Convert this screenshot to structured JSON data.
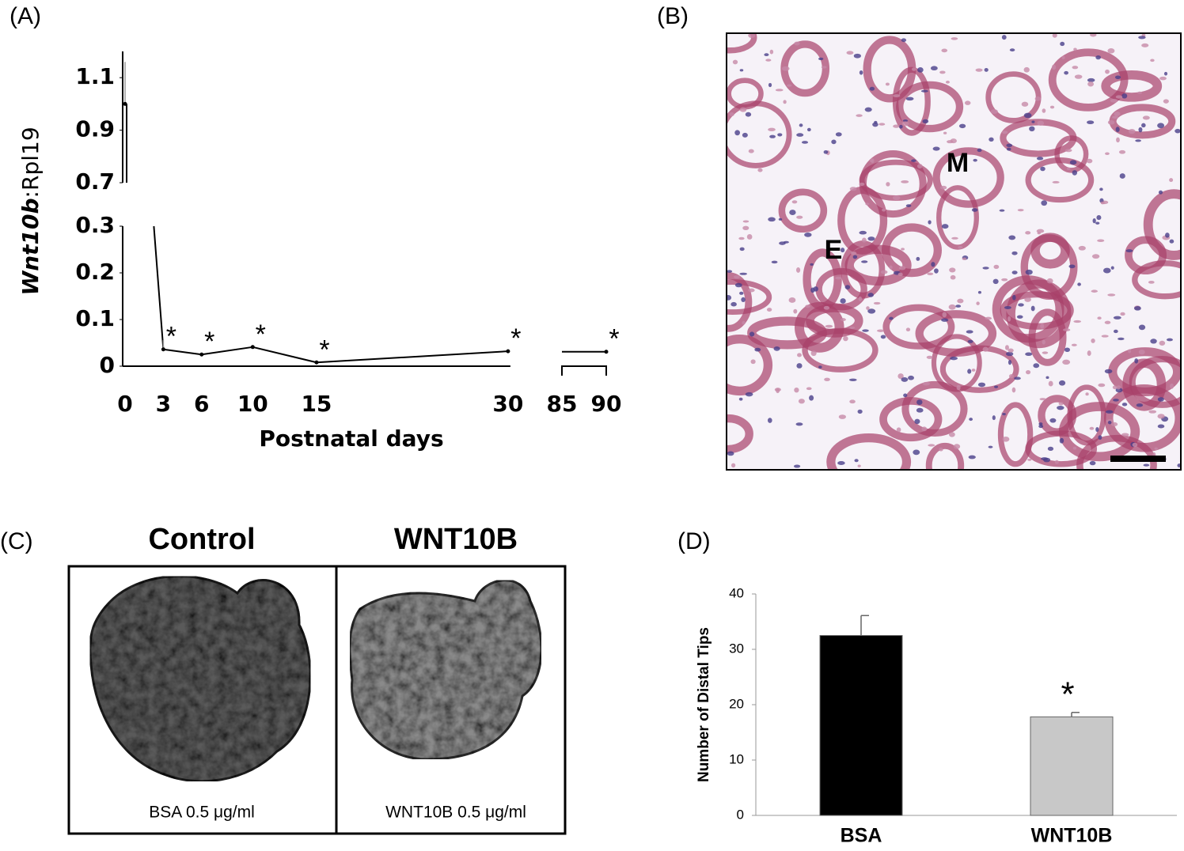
{
  "panel_labels": [
    "(A)",
    "(B)",
    "(C)",
    "(D)"
  ],
  "histology": {
    "labels": [
      "M",
      "E"
    ]
  },
  "explant": {
    "titles": [
      "Control",
      "WNT10B"
    ],
    "captions": [
      "BSA 0.5 μg/ml",
      "WNT10B 0.5 μg/ml"
    ]
  },
  "chart_data": [
    {
      "type": "line",
      "ylabel_italic": "Wnt10b",
      "ylabel": ":Rpl19",
      "xlabel": "Postnatal days",
      "x": [
        0,
        3,
        6,
        10,
        15,
        30,
        90
      ],
      "series": [
        {
          "color": "#000000",
          "values": [
            1.0,
            0.036,
            0.025,
            0.041,
            0.008,
            0.032,
            0.031
          ],
          "errors": [
            0.16,
            0.02,
            0.004,
            0.004,
            0.004,
            0.004,
            0.003
          ],
          "significance": [
            null,
            "*",
            "*",
            "*",
            "*",
            "*",
            "*"
          ]
        }
      ],
      "xlim": [
        0,
        90
      ],
      "xbreak": [
        30,
        85
      ],
      "xticks": [
        0,
        3,
        6,
        10,
        15,
        30,
        85,
        90
      ],
      "ylim": [
        0,
        1.2
      ],
      "ybreak": [
        0.3,
        0.7
      ],
      "yticks": [
        0,
        0.1,
        0.2,
        0.3,
        0.7,
        0.9,
        1.1
      ]
    },
    {
      "type": "bar",
      "ylabel": "Number of Distal Tips",
      "categories": [
        "BSA",
        "WNT10B"
      ],
      "values": [
        32.5,
        17.8
      ],
      "errors": [
        3.6,
        0.8
      ],
      "colors": [
        "#000000",
        "#c8c8c8"
      ],
      "significance": [
        null,
        "*"
      ],
      "ylim": [
        0,
        40
      ],
      "yticks": [
        0,
        10,
        20,
        30,
        40
      ]
    }
  ]
}
